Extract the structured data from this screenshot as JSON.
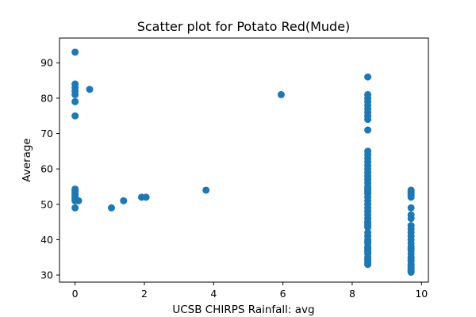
{
  "chart_data": {
    "type": "scatter",
    "title": "Scatter plot for Potato Red(Mude)",
    "xlabel": "UCSB CHIRPS Rainfall: avg",
    "ylabel": "Average",
    "xlim": [
      -0.45,
      10.2
    ],
    "ylim": [
      28,
      97
    ],
    "xticks": [
      0,
      2,
      4,
      6,
      8,
      10
    ],
    "yticks": [
      30,
      40,
      50,
      60,
      70,
      80,
      90
    ],
    "grid": false,
    "legend": "none",
    "marker_color": "#1f77b4",
    "series": [
      {
        "x": [
          0,
          0,
          0,
          0,
          0,
          0,
          0,
          0,
          0,
          0,
          0,
          0,
          0,
          0,
          0,
          0,
          0.1,
          0.42,
          1.05,
          1.4,
          1.92,
          2.05,
          3.78,
          5.95,
          8.45,
          8.45,
          8.45,
          8.45,
          8.45,
          8.45,
          8.45,
          8.45,
          8.45,
          8.45,
          8.45,
          8.45,
          8.45,
          8.45,
          8.45,
          8.45,
          8.45,
          8.45,
          8.45,
          8.45,
          8.45,
          8.45,
          8.45,
          8.45,
          8.45,
          8.45,
          8.45,
          8.45,
          8.45,
          8.45,
          8.45,
          8.45,
          8.45,
          8.45,
          8.45,
          8.45,
          8.45,
          8.45,
          8.45,
          8.45,
          8.45,
          8.45,
          8.45,
          8.45,
          8.45,
          8.45,
          8.45,
          8.45,
          8.45,
          8.45,
          8.45,
          9.7,
          9.7,
          9.7,
          9.7,
          9.7,
          9.7,
          9.7,
          9.7,
          9.7,
          9.7,
          9.7,
          9.7,
          9.7,
          9.7,
          9.7,
          9.7,
          9.7,
          9.7,
          9.7,
          9.7,
          9.7,
          9.7,
          9.7,
          9.7,
          9.7,
          9.7,
          9.7
        ],
        "y": [
          93,
          84,
          83,
          82,
          81,
          79,
          75,
          54.3,
          54,
          53.5,
          53,
          52.5,
          52,
          51.5,
          51,
          49,
          51,
          82.5,
          49,
          51,
          52,
          52,
          54,
          81,
          86,
          81,
          80,
          79,
          78,
          77,
          76,
          75,
          74,
          71,
          65,
          64,
          63,
          62,
          61,
          60,
          59,
          58,
          57,
          56,
          55,
          54,
          53.5,
          50,
          49,
          48,
          47,
          46,
          45,
          44,
          43.5,
          41,
          40,
          39,
          38,
          37,
          36,
          35,
          34,
          33.5,
          33,
          54.5,
          53,
          52,
          51,
          44.5,
          42,
          39.5,
          37.5,
          36.5,
          34.5,
          54,
          53.5,
          53,
          52.5,
          52,
          49,
          47,
          46,
          44,
          43,
          42,
          41,
          40,
          39,
          38,
          37.5,
          37,
          36,
          35,
          34.5,
          34,
          33,
          32.5,
          32,
          31.5,
          31,
          30.8
        ]
      }
    ]
  }
}
